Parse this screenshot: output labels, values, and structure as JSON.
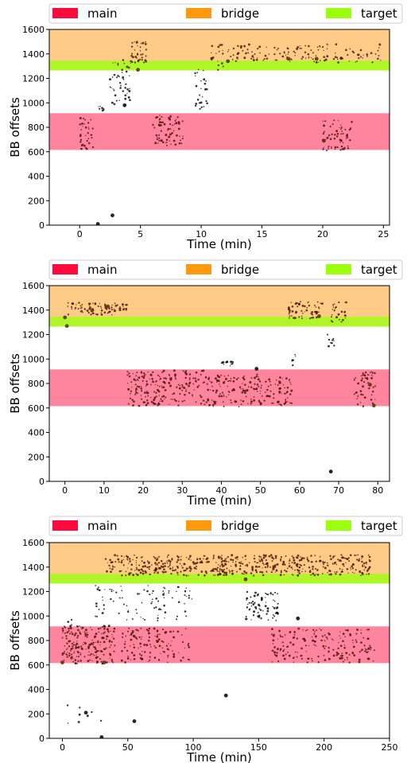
{
  "chart_data": [
    {
      "type": "scatter",
      "xlabel": "Time (min)",
      "ylabel": "BB offsets",
      "xlim": [
        -2.5,
        25.5
      ],
      "ylim": [
        0,
        1600
      ],
      "xticks": [
        0,
        5,
        10,
        15,
        20,
        25
      ],
      "yticks": [
        0,
        200,
        400,
        600,
        800,
        1000,
        1200,
        1400,
        1600
      ],
      "legend": {
        "placement": "top",
        "items": [
          "main",
          "bridge",
          "target"
        ]
      },
      "bands": [
        {
          "name": "main",
          "from": 615,
          "to": 915,
          "color": "#ff0a3c"
        },
        {
          "name": "bridge",
          "from": 1265,
          "to": 1620,
          "color": "#ff9a10"
        },
        {
          "name": "target",
          "from": 1265,
          "to": 1345,
          "color": "#9cff10"
        }
      ],
      "clusters": [
        {
          "x": [
            0.0,
            1.1
          ],
          "y": [
            615,
            880
          ],
          "n": 35
        },
        {
          "x": [
            1.5,
            2.0
          ],
          "y": [
            930,
            975
          ],
          "n": 8
        },
        {
          "x": [
            2.5,
            4.2
          ],
          "y": [
            960,
            1350
          ],
          "n": 45
        },
        {
          "x": [
            4.2,
            5.5
          ],
          "y": [
            1330,
            1500
          ],
          "n": 40
        },
        {
          "x": [
            6.0,
            8.5
          ],
          "y": [
            650,
            900
          ],
          "n": 70
        },
        {
          "x": [
            9.5,
            10.5
          ],
          "y": [
            950,
            1300
          ],
          "n": 25
        },
        {
          "x": [
            10.8,
            12.2
          ],
          "y": [
            1260,
            1480
          ],
          "n": 20
        },
        {
          "x": [
            12.2,
            17.2
          ],
          "y": [
            1340,
            1480
          ],
          "n": 55
        },
        {
          "x": [
            17.0,
            24.8
          ],
          "y": [
            1330,
            1480
          ],
          "n": 80
        },
        {
          "x": [
            20.0,
            22.5
          ],
          "y": [
            610,
            870
          ],
          "n": 60
        }
      ],
      "markers": [
        {
          "x": 1.5,
          "y": 10
        },
        {
          "x": 2.7,
          "y": 80
        },
        {
          "x": 3.7,
          "y": 980
        },
        {
          "x": 12.2,
          "y": 1340
        },
        {
          "x": 17.2,
          "y": 1360
        },
        {
          "x": 19.5,
          "y": 1360
        },
        {
          "x": 20.1,
          "y": 690
        },
        {
          "x": 4.8,
          "y": 1270
        }
      ]
    },
    {
      "type": "scatter",
      "xlabel": "Time (min)",
      "ylabel": "BB offsets",
      "xlim": [
        -4,
        83
      ],
      "ylim": [
        0,
        1600
      ],
      "xticks": [
        0,
        10,
        20,
        30,
        40,
        50,
        60,
        70,
        80
      ],
      "yticks": [
        0,
        200,
        400,
        600,
        800,
        1000,
        1200,
        1400,
        1600
      ],
      "legend": {
        "placement": "top",
        "items": [
          "main",
          "bridge",
          "target"
        ]
      },
      "bands": [
        {
          "name": "main",
          "from": 615,
          "to": 915,
          "color": "#ff0a3c"
        },
        {
          "name": "bridge",
          "from": 1265,
          "to": 1620,
          "color": "#ff9a10"
        },
        {
          "name": "target",
          "from": 1265,
          "to": 1345,
          "color": "#9cff10"
        }
      ],
      "clusters": [
        {
          "x": [
            0,
            16
          ],
          "y": [
            1360,
            1460
          ],
          "n": 80
        },
        {
          "x": [
            16,
            21
          ],
          "y": [
            610,
            900
          ],
          "n": 60
        },
        {
          "x": [
            21,
            37
          ],
          "y": [
            620,
            910
          ],
          "n": 150
        },
        {
          "x": [
            37,
            50
          ],
          "y": [
            610,
            880
          ],
          "n": 110
        },
        {
          "x": [
            50,
            58
          ],
          "y": [
            620,
            850
          ],
          "n": 70
        },
        {
          "x": [
            40,
            43
          ],
          "y": [
            940,
            990
          ],
          "n": 15
        },
        {
          "x": [
            57,
            66
          ],
          "y": [
            1330,
            1470
          ],
          "n": 60
        },
        {
          "x": [
            58,
            59
          ],
          "y": [
            940,
            1100
          ],
          "n": 8
        },
        {
          "x": [
            67,
            69
          ],
          "y": [
            1100,
            1200
          ],
          "n": 10
        },
        {
          "x": [
            68,
            72
          ],
          "y": [
            1300,
            1470
          ],
          "n": 25
        },
        {
          "x": [
            74,
            80
          ],
          "y": [
            610,
            900
          ],
          "n": 50
        }
      ],
      "markers": [
        {
          "x": 0,
          "y": 1340
        },
        {
          "x": 0.5,
          "y": 1270
        },
        {
          "x": 11,
          "y": 1430
        },
        {
          "x": 49,
          "y": 920
        },
        {
          "x": 65,
          "y": 1350
        },
        {
          "x": 68,
          "y": 80
        },
        {
          "x": 78,
          "y": 790
        },
        {
          "x": 79,
          "y": 620
        },
        {
          "x": 7,
          "y": 1400
        }
      ]
    },
    {
      "type": "scatter",
      "xlabel": "Time (min)",
      "ylabel": "BB offsets",
      "xlim": [
        -10,
        250
      ],
      "ylim": [
        0,
        1600
      ],
      "xticks": [
        0,
        50,
        100,
        150,
        200,
        250
      ],
      "yticks": [
        0,
        200,
        400,
        600,
        800,
        1000,
        1200,
        1400,
        1600
      ],
      "legend": {
        "placement": "top",
        "items": [
          "main",
          "bridge",
          "target"
        ]
      },
      "bands": [
        {
          "name": "main",
          "from": 615,
          "to": 915,
          "color": "#ff0a3c"
        },
        {
          "name": "bridge",
          "from": 1265,
          "to": 1620,
          "color": "#ff9a10"
        },
        {
          "name": "target",
          "from": 1265,
          "to": 1345,
          "color": "#9cff10"
        }
      ],
      "clusters": [
        {
          "x": [
            0,
            40
          ],
          "y": [
            610,
            920
          ],
          "n": 180
        },
        {
          "x": [
            0,
            12
          ],
          "y": [
            620,
            980
          ],
          "n": 25
        },
        {
          "x": [
            33,
            125
          ],
          "y": [
            1330,
            1500
          ],
          "n": 260
        },
        {
          "x": [
            45,
            100
          ],
          "y": [
            620,
            900
          ],
          "n": 120
        },
        {
          "x": [
            25,
            100
          ],
          "y": [
            960,
            1250
          ],
          "n": 90
        },
        {
          "x": [
            125,
            175
          ],
          "y": [
            1330,
            1500
          ],
          "n": 130
        },
        {
          "x": [
            140,
            165
          ],
          "y": [
            960,
            1200
          ],
          "n": 70
        },
        {
          "x": [
            175,
            235
          ],
          "y": [
            1330,
            1500
          ],
          "n": 160
        },
        {
          "x": [
            160,
            240
          ],
          "y": [
            620,
            900
          ],
          "n": 180
        },
        {
          "x": [
            0,
            30
          ],
          "y": [
            80,
            400
          ],
          "n": 8
        }
      ],
      "markers": [
        {
          "x": 125,
          "y": 350
        },
        {
          "x": 55,
          "y": 140
        },
        {
          "x": 30,
          "y": 10
        },
        {
          "x": 18,
          "y": 210
        },
        {
          "x": 0,
          "y": 620
        },
        {
          "x": 32,
          "y": 620
        },
        {
          "x": 180,
          "y": 980
        },
        {
          "x": 140,
          "y": 1300
        }
      ]
    }
  ]
}
